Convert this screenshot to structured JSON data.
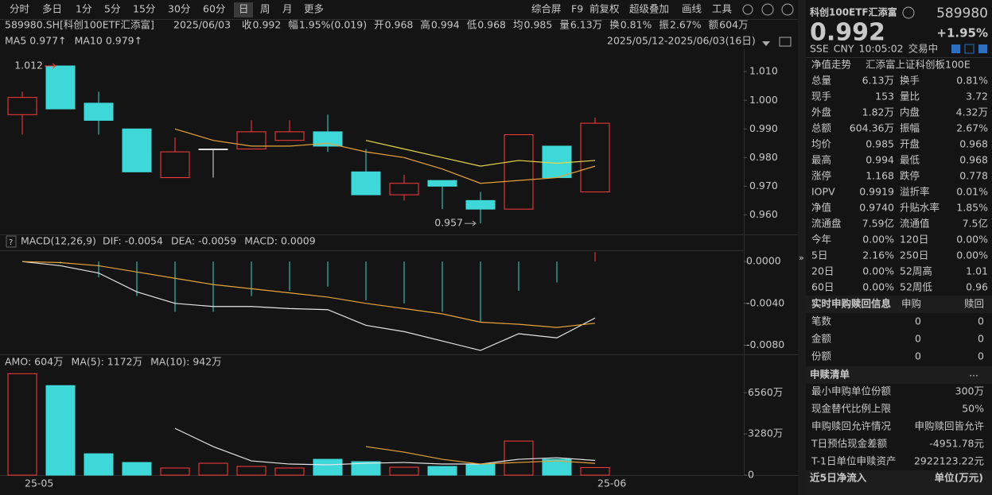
{
  "toolbar": {
    "periods": [
      "分时",
      "多日",
      "1分",
      "5分",
      "15分",
      "30分",
      "60分",
      "日",
      "周",
      "月",
      "更多"
    ],
    "tools": [
      "综合屏",
      "F9",
      "前复权",
      "超级叠加",
      "画线",
      "工具"
    ]
  },
  "quote_bar": {
    "symbol": "589980.SH[科创100ETF汇添富]",
    "date": "2025/06/03",
    "fields": [
      {
        "label": "收",
        "value": "0.992"
      },
      {
        "label": "幅",
        "value": "1.95%(0.019)"
      },
      {
        "label": "开",
        "value": "0.968"
      },
      {
        "label": "高",
        "value": "0.994"
      },
      {
        "label": "低",
        "value": "0.968"
      },
      {
        "label": "均",
        "value": "0.985"
      },
      {
        "label": "量",
        "value": "6.13万"
      },
      {
        "label": "换",
        "value": "0.81%"
      },
      {
        "label": "振",
        "value": "2.67%"
      },
      {
        "label": "额",
        "value": "604万"
      }
    ]
  },
  "chart_data": [
    {
      "type": "candlestick",
      "range_label": "2025/05/12-2025/06/03(16日)",
      "up_color": "#ff3b3b",
      "down_color": "#3ed8d8",
      "flat_color": "#e0e0e0",
      "open": [
        0.995,
        1.012,
        0.999,
        0.99,
        0.973,
        0.983,
        0.983,
        0.986,
        0.989,
        0.975,
        0.967,
        0.972,
        0.965,
        0.962,
        0.984,
        0.968
      ],
      "high": [
        1.003,
        1.012,
        1.003,
        0.99,
        0.987,
        0.983,
        0.993,
        0.993,
        0.995,
        0.983,
        0.974,
        0.972,
        0.968,
        0.988,
        0.984,
        0.994
      ],
      "low": [
        0.988,
        0.997,
        0.988,
        0.975,
        0.973,
        0.973,
        0.983,
        0.986,
        0.982,
        0.967,
        0.965,
        0.962,
        0.957,
        0.962,
        0.973,
        0.968
      ],
      "close": [
        1.001,
        0.997,
        0.993,
        0.975,
        0.982,
        0.983,
        0.989,
        0.989,
        0.984,
        0.967,
        0.971,
        0.97,
        0.962,
        0.988,
        0.973,
        0.992
      ],
      "series": [
        {
          "name": "MA5",
          "legend_value": "0.977↑",
          "color": "#e8a33a",
          "values": [
            null,
            null,
            null,
            null,
            0.99,
            0.986,
            0.984,
            0.984,
            0.985,
            0.982,
            0.98,
            0.976,
            0.971,
            0.972,
            0.973,
            0.977
          ]
        },
        {
          "name": "MA10",
          "legend_value": "0.979↑",
          "color": "#e8d84a",
          "values": [
            null,
            null,
            null,
            null,
            null,
            null,
            null,
            null,
            null,
            0.986,
            0.983,
            0.98,
            0.977,
            0.979,
            0.978,
            0.979
          ]
        }
      ],
      "max_label": 1.012,
      "min_label": 0.957,
      "ylim": [
        0.954,
        1.017
      ],
      "yticks": [
        {
          "value": 1.01,
          "label": "1.010"
        },
        {
          "value": 1,
          "label": "1.000"
        },
        {
          "value": 0.99,
          "label": "0.990"
        },
        {
          "value": 0.98,
          "label": "0.980"
        },
        {
          "value": 0.97,
          "label": "0.970"
        },
        {
          "value": 0.96,
          "label": "0.960"
        }
      ]
    },
    {
      "type": "macd",
      "title": "MACD(12,26,9)",
      "series": [
        {
          "name": "DIF:",
          "legend_value": "-0.0054",
          "color": "#e6e6e6",
          "values": [
            0,
            -0.0004,
            -0.0011,
            -0.0029,
            -0.004,
            -0.0043,
            -0.0043,
            -0.0045,
            -0.0046,
            -0.0061,
            -0.0067,
            -0.0076,
            -0.0085,
            -0.0069,
            -0.0073,
            -0.0054
          ]
        },
        {
          "name": "DEA:",
          "legend_value": "-0.0059",
          "color": "#e8a33a",
          "values": [
            0,
            -0.0001,
            -0.0004,
            -0.001,
            -0.0016,
            -0.0022,
            -0.0026,
            -0.003,
            -0.0034,
            -0.004,
            -0.0045,
            -0.005,
            -0.0058,
            -0.006,
            -0.0063,
            -0.0059
          ]
        },
        {
          "name": "MACD:",
          "legend_value": "0.0009",
          "color": "#3ed8d8",
          "up_color": "#ff3b3b",
          "bars": true,
          "values": [
            0,
            -0.0002,
            -0.0015,
            -0.0033,
            -0.0048,
            -0.0048,
            -0.0033,
            -0.0028,
            -0.0024,
            -0.0037,
            -0.004,
            -0.0048,
            -0.0058,
            -0.0028,
            -0.002,
            0.0009
          ]
        }
      ],
      "ylim": [
        -0.0088,
        0.001
      ],
      "yticks": [
        {
          "value": 0,
          "label": "0.0000"
        },
        {
          "value": -0.004,
          "label": "-0.0040"
        },
        {
          "value": -0.008,
          "label": "-0.0080"
        }
      ]
    },
    {
      "type": "bar",
      "categories": [
        "25-05",
        null,
        null,
        null,
        null,
        null,
        null,
        null,
        null,
        null,
        null,
        null,
        null,
        null,
        null,
        "25-06"
      ],
      "series": [
        {
          "name": "AMO:",
          "legend_value": "604万",
          "color": "#e6e6e6",
          "bars": true,
          "values": [
            8074,
            7128,
            1703,
            1009,
            568,
            946,
            694,
            568,
            1262,
            1072,
            631,
            694,
            883,
            2712,
            1262,
            604
          ]
        },
        {
          "name": "MA(5):",
          "legend_value": "1172万",
          "color": "#e6e6e6",
          "values": [
            null,
            null,
            null,
            null,
            3722,
            2271,
            1135,
            883,
            820,
            946,
            1009,
            883,
            883,
            1262,
            1388,
            1172
          ]
        },
        {
          "name": "MA(10):",
          "legend_value": "942万",
          "color": "#e8a33a",
          "values": [
            null,
            null,
            null,
            null,
            null,
            null,
            null,
            null,
            null,
            2271,
            1829,
            1262,
            883,
            1009,
            1135,
            942
          ]
        }
      ],
      "ylim": [
        0,
        8600
      ],
      "yticks": [
        0,
        {
          "value": 3280,
          "label": "3280万"
        },
        {
          "value": 6560,
          "label": "6560万"
        }
      ]
    }
  ],
  "side_panel": {
    "name": "科创100ETF汇添富",
    "code": "589980",
    "price": "0.992",
    "change": "+1.95%",
    "status": [
      "SSE",
      "CNY",
      "10:05:02",
      "交易中"
    ],
    "nav_trend": {
      "label": "净值走势",
      "value": "汇添富上证科创板100E"
    },
    "stats": [
      [
        "总量",
        "6.13万",
        "换手",
        "0.81%"
      ],
      [
        "现手",
        "153",
        "量比",
        "3.72"
      ],
      [
        "外盘",
        "1.82万",
        "内盘",
        "4.32万"
      ],
      [
        "总额",
        "604.36万",
        "振幅",
        "2.67%"
      ],
      [
        "均价",
        "0.985",
        "开盘",
        "0.968"
      ],
      [
        "最高",
        "0.994",
        "最低",
        "0.968"
      ],
      [
        "涨停",
        "1.168",
        "跌停",
        "0.778"
      ],
      [
        "IOPV",
        "0.9919",
        "溢折率",
        "0.01%"
      ],
      [
        "净值",
        "0.9740",
        "升贴水率",
        "1.85%"
      ],
      [
        "流通盘",
        "7.59亿",
        "流通值",
        "7.5亿"
      ],
      [
        "今年",
        "0.00%",
        "120日",
        "0.00%"
      ],
      [
        "5日",
        "2.16%",
        "250日",
        "0.00%"
      ],
      [
        "20日",
        "0.00%",
        "52周高",
        "1.01"
      ],
      [
        "60日",
        "0.00%",
        "52周低",
        "0.96"
      ]
    ],
    "subscription": {
      "title": "实时申购赎回信息",
      "columns": [
        "申购",
        "赎回"
      ],
      "rows": [
        [
          "笔数",
          "0",
          "0"
        ],
        [
          "金额",
          "0",
          "0"
        ],
        [
          "份额",
          "0",
          "0"
        ]
      ]
    },
    "list": {
      "title": "申赎清单",
      "more": "...",
      "rows": [
        [
          "最小申购单位份额",
          "300万"
        ],
        [
          "现金替代比例上限",
          "50%"
        ],
        [
          "申购赎回允许情况",
          "申购赎回皆允许"
        ],
        [
          "T日预估现金差额",
          "-4951.78元"
        ],
        [
          "T-1日单位申赎资产",
          "2922123.22元"
        ]
      ]
    },
    "footer": {
      "title": "近5日净流入",
      "unit": "单位(万元)"
    }
  }
}
